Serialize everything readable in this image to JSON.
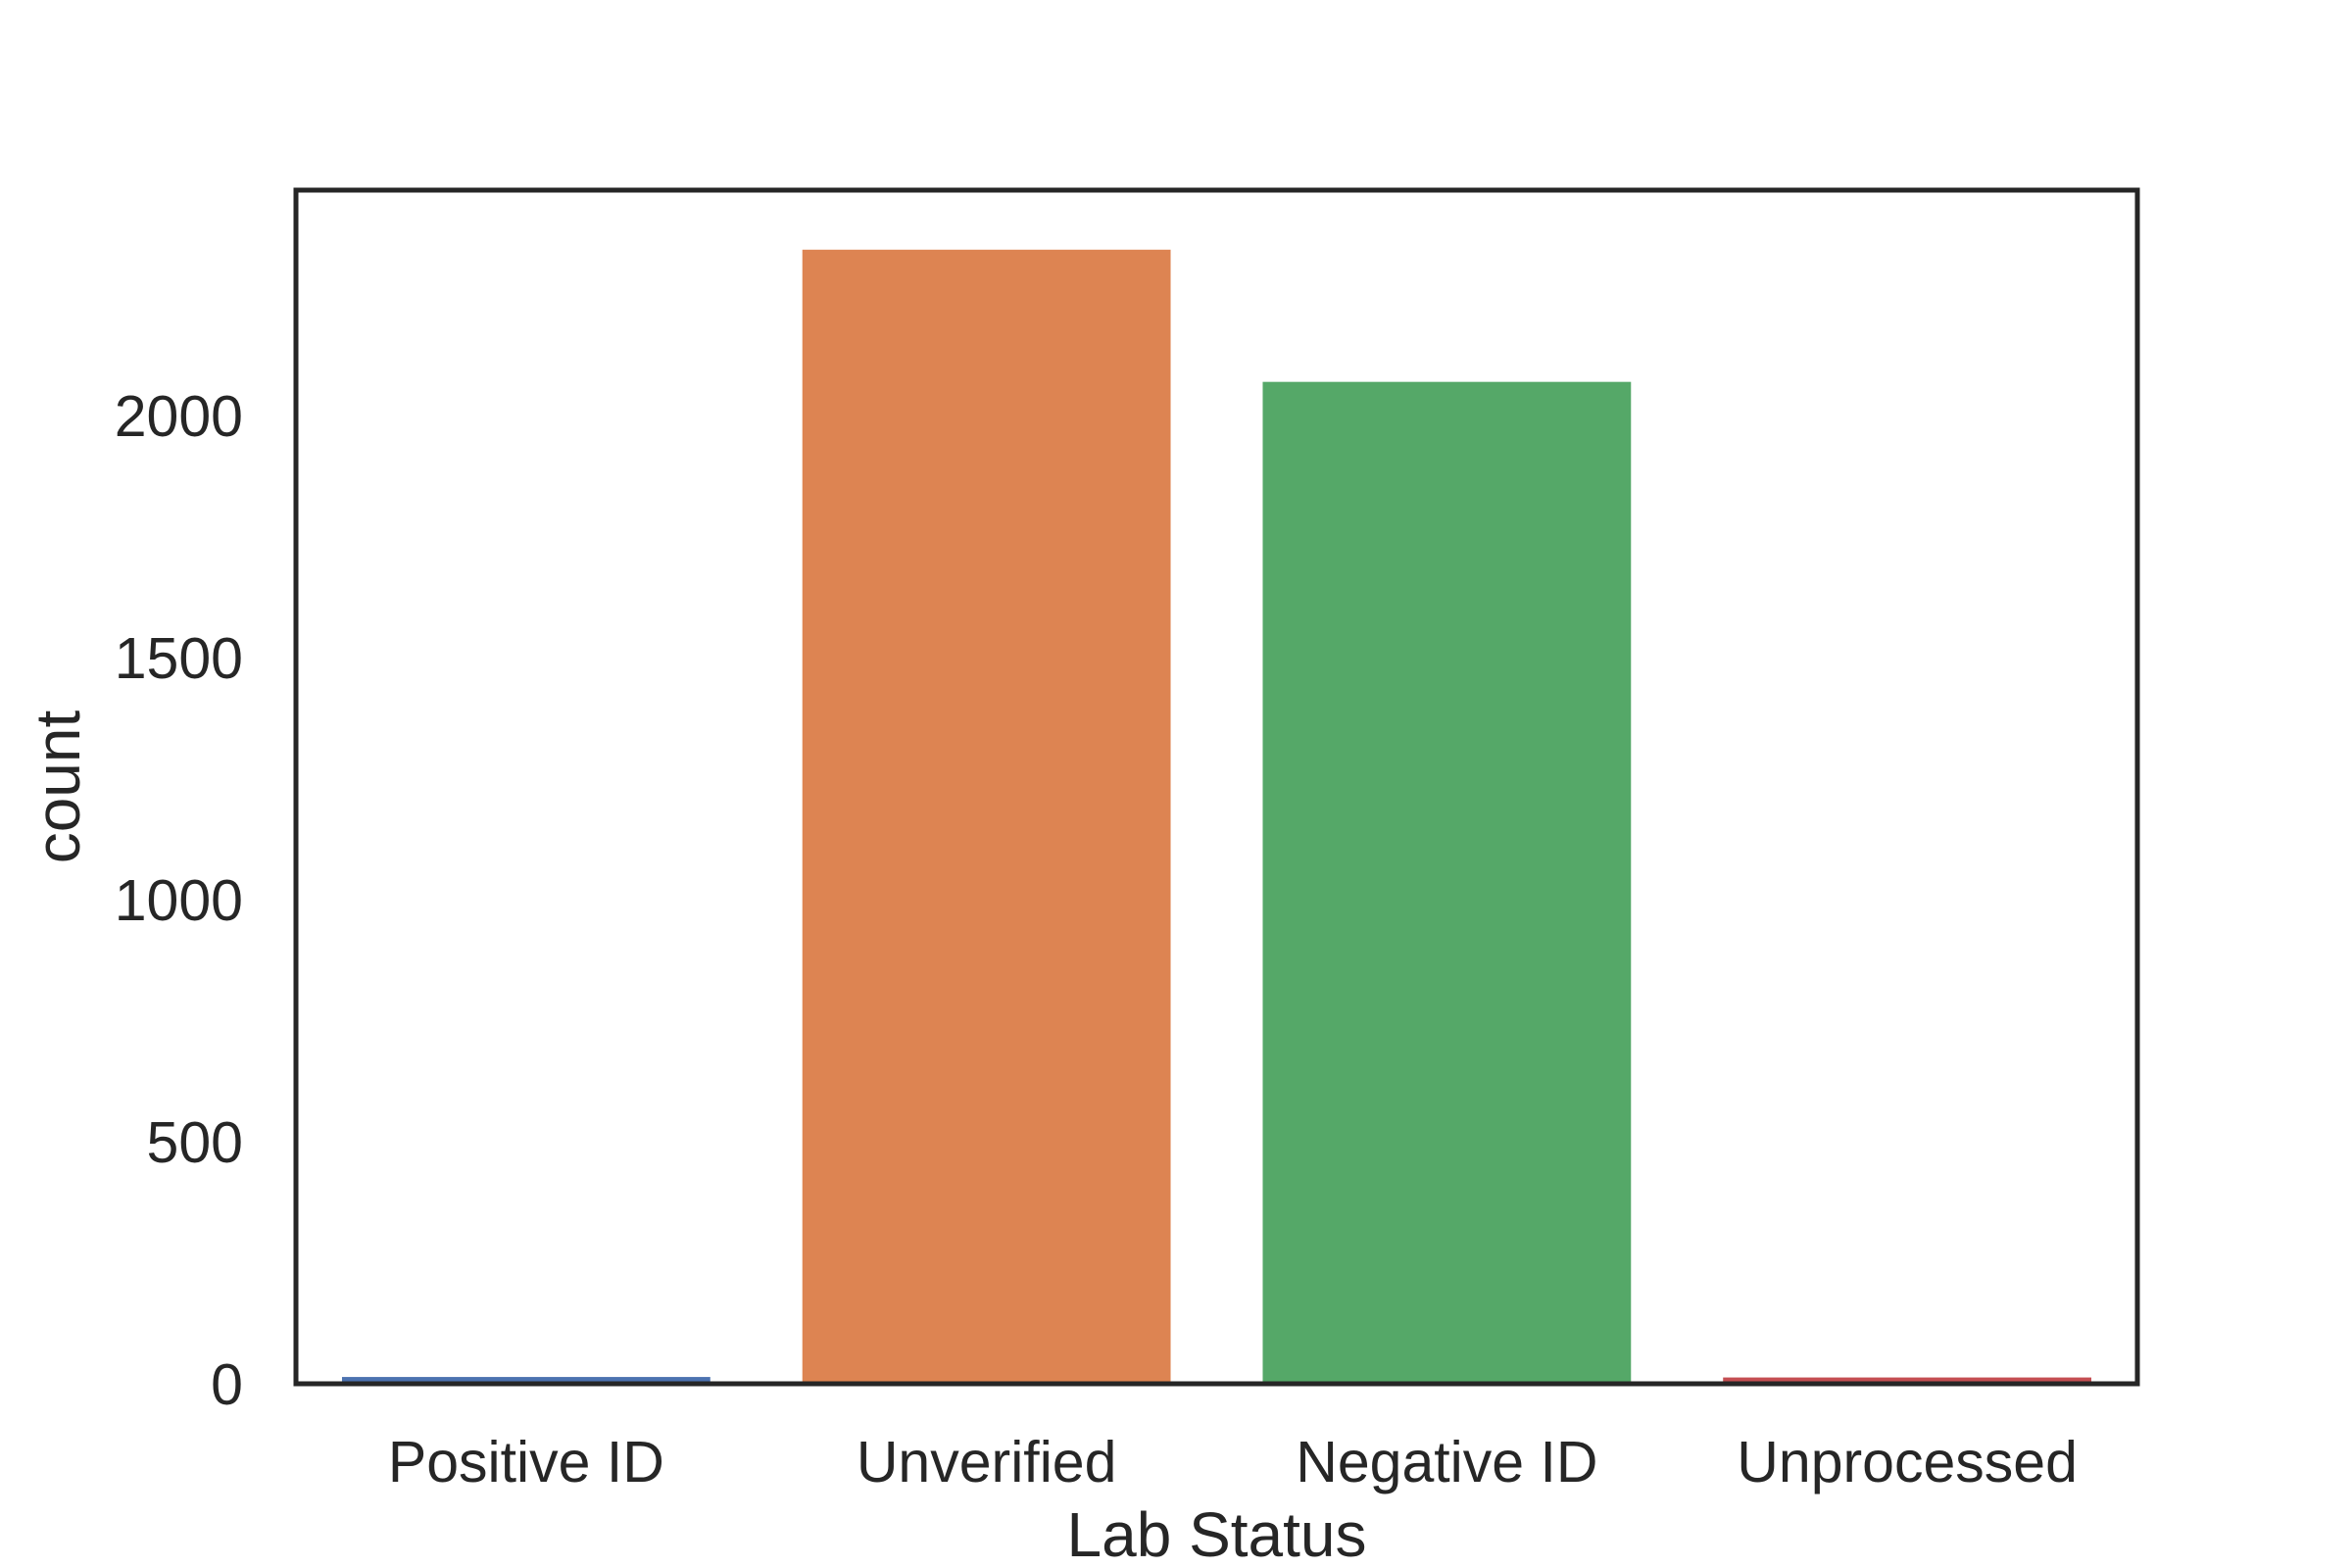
{
  "chart_data": {
    "type": "bar",
    "title": "",
    "xlabel": "Lab Status",
    "ylabel": "count",
    "categories": [
      "Positive ID",
      "Unverified",
      "Negative ID",
      "Unprocessed"
    ],
    "values": [
      14,
      2342,
      2069,
      13
    ],
    "colors": [
      "#4c72b0",
      "#dd8452",
      "#55a868",
      "#c44e52"
    ],
    "ylim": [
      0,
      2465
    ],
    "yticks": [
      0,
      500,
      1000,
      1500,
      2000
    ],
    "grid": false,
    "legend": "none",
    "frame_color": "#262626"
  }
}
